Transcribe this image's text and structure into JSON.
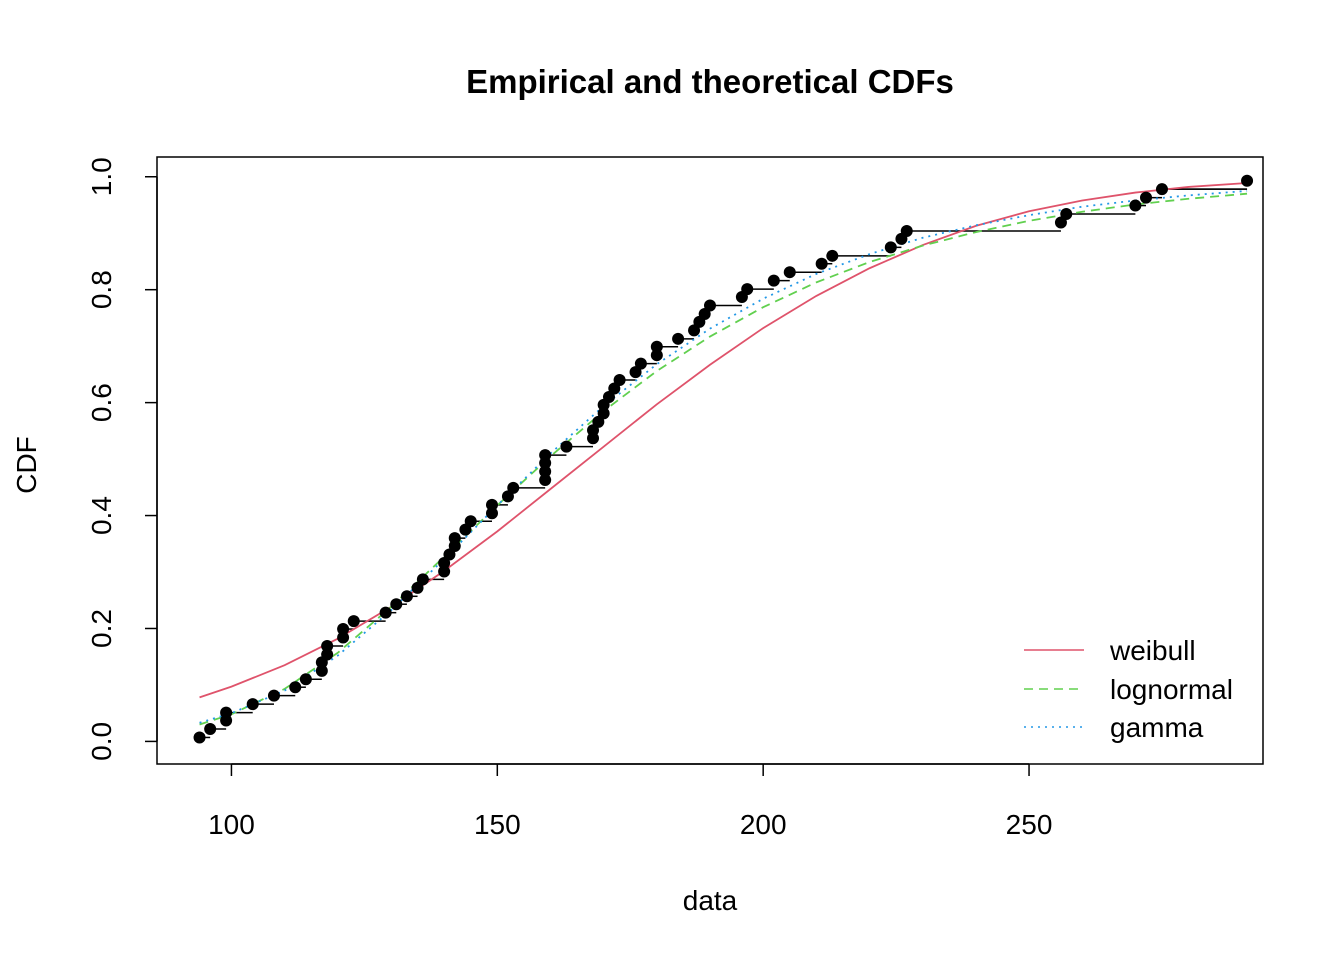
{
  "chart_data": {
    "type": "line",
    "title": "Empirical and theoretical CDFs",
    "xlabel": "data",
    "ylabel": "CDF",
    "xlim": [
      86,
      294
    ],
    "ylim": [
      -0.04,
      1.035
    ],
    "x_ticks": [
      100,
      150,
      200,
      250
    ],
    "x_tick_labels": [
      "100",
      "150",
      "200",
      "250"
    ],
    "y_ticks": [
      0.0,
      0.2,
      0.4,
      0.6,
      0.8,
      1.0
    ],
    "y_tick_labels": [
      "0.0",
      "0.2",
      "0.4",
      "0.6",
      "0.8",
      "1.0"
    ],
    "grid": false,
    "legend_position": "bottom-right",
    "empirical": {
      "x": [
        94,
        96,
        99,
        99,
        104,
        108,
        112,
        114,
        117,
        117,
        118,
        118,
        121,
        121,
        123,
        129,
        131,
        133,
        135,
        136,
        140,
        140,
        141,
        142,
        142,
        144,
        145,
        149,
        149,
        152,
        153,
        159,
        159,
        159,
        159,
        163,
        168,
        168,
        169,
        170,
        170,
        171,
        172,
        173,
        176,
        177,
        180,
        180,
        184,
        187,
        188,
        189,
        190,
        196,
        197,
        202,
        205,
        211,
        213,
        224,
        226,
        227,
        256,
        257,
        270,
        272,
        275,
        291
      ],
      "y": [
        0.007,
        0.022,
        0.037,
        0.051,
        0.066,
        0.081,
        0.096,
        0.11,
        0.125,
        0.14,
        0.154,
        0.169,
        0.184,
        0.199,
        0.213,
        0.228,
        0.243,
        0.257,
        0.272,
        0.287,
        0.301,
        0.316,
        0.331,
        0.346,
        0.36,
        0.375,
        0.39,
        0.404,
        0.419,
        0.434,
        0.449,
        0.463,
        0.478,
        0.493,
        0.507,
        0.522,
        0.537,
        0.551,
        0.566,
        0.581,
        0.596,
        0.61,
        0.625,
        0.64,
        0.654,
        0.669,
        0.684,
        0.699,
        0.713,
        0.728,
        0.743,
        0.757,
        0.772,
        0.787,
        0.801,
        0.816,
        0.831,
        0.846,
        0.86,
        0.875,
        0.89,
        0.904,
        0.919,
        0.934,
        0.949,
        0.963,
        0.978,
        0.993
      ]
    },
    "series": [
      {
        "name": "weibull",
        "color": "#DF536B",
        "dash": "solid",
        "x": [
          94,
          100,
          110,
          120,
          130,
          140,
          150,
          160,
          170,
          180,
          190,
          200,
          210,
          220,
          230,
          240,
          250,
          260,
          270,
          280,
          291
        ],
        "values": [
          0.078,
          0.097,
          0.135,
          0.182,
          0.238,
          0.302,
          0.372,
          0.447,
          0.522,
          0.597,
          0.667,
          0.732,
          0.789,
          0.838,
          0.879,
          0.913,
          0.939,
          0.958,
          0.972,
          0.982,
          0.989
        ]
      },
      {
        "name": "lognormal",
        "color": "#61D04F",
        "dash": "dashed",
        "x": [
          94,
          100,
          110,
          120,
          130,
          140,
          150,
          160,
          170,
          180,
          190,
          200,
          210,
          220,
          230,
          240,
          250,
          260,
          270,
          280,
          291
        ],
        "values": [
          0.03,
          0.048,
          0.093,
          0.157,
          0.238,
          0.327,
          0.418,
          0.505,
          0.585,
          0.656,
          0.717,
          0.769,
          0.813,
          0.849,
          0.878,
          0.902,
          0.922,
          0.938,
          0.951,
          0.961,
          0.97
        ]
      },
      {
        "name": "gamma",
        "color": "#2297E6",
        "dash": "dotted",
        "x": [
          94,
          100,
          110,
          120,
          130,
          140,
          150,
          160,
          170,
          180,
          190,
          200,
          210,
          220,
          230,
          240,
          250,
          260,
          270,
          280,
          291
        ],
        "values": [
          0.033,
          0.05,
          0.09,
          0.152,
          0.232,
          0.323,
          0.418,
          0.51,
          0.594,
          0.668,
          0.731,
          0.784,
          0.828,
          0.863,
          0.892,
          0.914,
          0.932,
          0.947,
          0.958,
          0.967,
          0.975
        ]
      }
    ]
  }
}
